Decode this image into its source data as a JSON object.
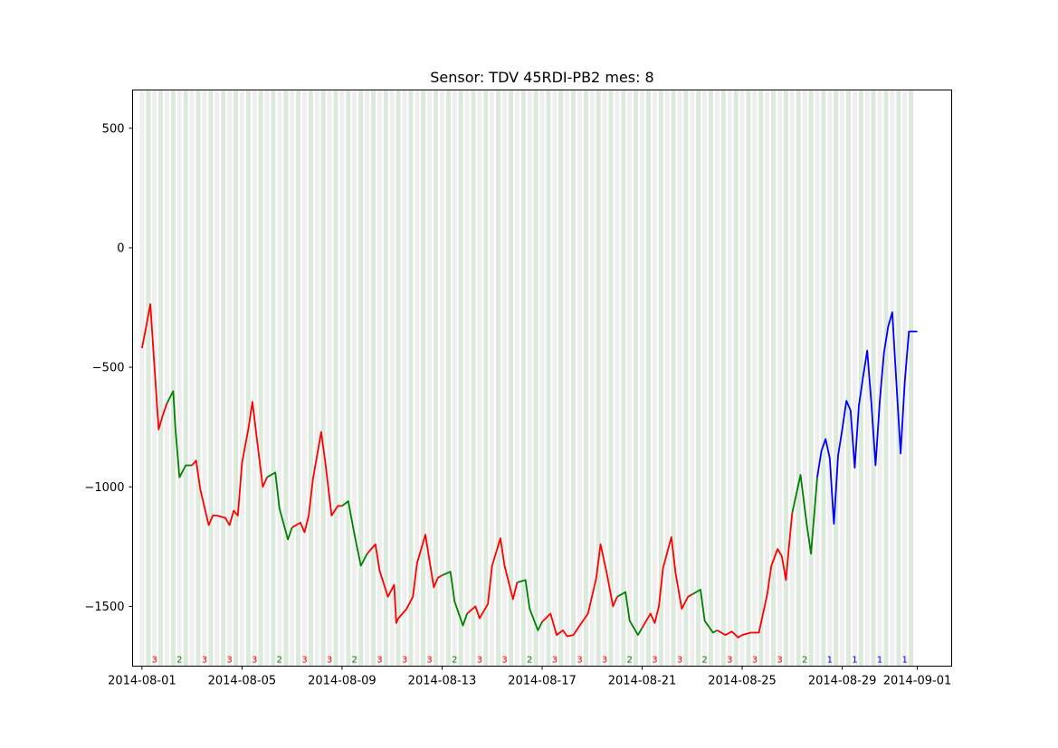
{
  "chart_data": {
    "type": "line",
    "title": "Sensor: TDV 45RDI-PB2 mes: 8",
    "xlabel": "",
    "ylabel": "",
    "x_range": [
      "2014-07-31T15:00",
      "2014-09-02T09:00"
    ],
    "ylim": [
      -1750,
      660
    ],
    "y_ticks": [
      500,
      0,
      -500,
      -1000,
      -1500
    ],
    "y_tick_labels": [
      "500",
      "0",
      "−500",
      "−1000",
      "−1500"
    ],
    "x_ticks": [
      "2014-08-01",
      "2014-08-05",
      "2014-08-09",
      "2014-08-13",
      "2014-08-17",
      "2014-08-21",
      "2014-08-25",
      "2014-08-29",
      "2014-09-01"
    ],
    "class_colors": {
      "1": "#0000ff",
      "2": "#008000",
      "3": "#ff0000"
    },
    "shade_colors": {
      "light": "#e8e8e8",
      "green": "#cfe3cf"
    },
    "day_classes": [
      {
        "date": "2014-08-01",
        "label": "3"
      },
      {
        "date": "2014-08-02",
        "label": "2"
      },
      {
        "date": "2014-08-03",
        "label": "3"
      },
      {
        "date": "2014-08-04",
        "label": "3"
      },
      {
        "date": "2014-08-05",
        "label": "3"
      },
      {
        "date": "2014-08-06",
        "label": "2"
      },
      {
        "date": "2014-08-07",
        "label": "3"
      },
      {
        "date": "2014-08-08",
        "label": "3"
      },
      {
        "date": "2014-08-09",
        "label": "2"
      },
      {
        "date": "2014-08-10",
        "label": "3"
      },
      {
        "date": "2014-08-11",
        "label": "3"
      },
      {
        "date": "2014-08-12",
        "label": "3"
      },
      {
        "date": "2014-08-13",
        "label": "2"
      },
      {
        "date": "2014-08-14",
        "label": "3"
      },
      {
        "date": "2014-08-15",
        "label": "3"
      },
      {
        "date": "2014-08-16",
        "label": "2"
      },
      {
        "date": "2014-08-17",
        "label": "3"
      },
      {
        "date": "2014-08-18",
        "label": "3"
      },
      {
        "date": "2014-08-19",
        "label": "3"
      },
      {
        "date": "2014-08-20",
        "label": "2"
      },
      {
        "date": "2014-08-21",
        "label": "3"
      },
      {
        "date": "2014-08-22",
        "label": "3"
      },
      {
        "date": "2014-08-23",
        "label": "2"
      },
      {
        "date": "2014-08-24",
        "label": "3"
      },
      {
        "date": "2014-08-25",
        "label": "3"
      },
      {
        "date": "2014-08-26",
        "label": "3"
      },
      {
        "date": "2014-08-27",
        "label": "2"
      },
      {
        "date": "2014-08-28",
        "label": "1"
      },
      {
        "date": "2014-08-29",
        "label": "1"
      },
      {
        "date": "2014-08-30",
        "label": "1"
      },
      {
        "date": "2014-08-31",
        "label": "1"
      }
    ],
    "series": [
      {
        "class": "3",
        "x": [
          "2014-08-01T00:00",
          "2014-08-01T04:00",
          "2014-08-01T08:00",
          "2014-08-01T12:00",
          "2014-08-01T16:00",
          "2014-08-01T20:00",
          "2014-08-02T00:00"
        ],
        "y": [
          -420,
          -330,
          -235,
          -500,
          -760,
          -700,
          -650
        ]
      },
      {
        "class": "2",
        "x": [
          "2014-08-02T00:00",
          "2014-08-02T06:00",
          "2014-08-02T08:00",
          "2014-08-02T12:00",
          "2014-08-02T18:00",
          "2014-08-03T00:00"
        ],
        "y": [
          -650,
          -600,
          -750,
          -960,
          -910,
          -910
        ]
      },
      {
        "class": "3",
        "x": [
          "2014-08-03T00:00",
          "2014-08-03T04:00",
          "2014-08-03T08:00",
          "2014-08-03T16:00",
          "2014-08-03T20:00",
          "2014-08-04T00:00",
          "2014-08-04T08:00",
          "2014-08-04T12:00",
          "2014-08-04T16:00",
          "2014-08-04T20:00",
          "2014-08-05T00:00",
          "2014-08-05T06:00",
          "2014-08-05T10:00",
          "2014-08-05T16:00",
          "2014-08-05T20:00",
          "2014-08-06T00:00"
        ],
        "y": [
          -910,
          -890,
          -1010,
          -1160,
          -1120,
          -1120,
          -1130,
          -1160,
          -1100,
          -1120,
          -900,
          -760,
          -645,
          -860,
          -1000,
          -960
        ]
      },
      {
        "class": "2",
        "x": [
          "2014-08-06T00:00",
          "2014-08-06T08:00",
          "2014-08-06T12:00",
          "2014-08-06T20:00",
          "2014-08-07T00:00"
        ],
        "y": [
          -960,
          -940,
          -1090,
          -1220,
          -1170
        ]
      },
      {
        "class": "3",
        "x": [
          "2014-08-07T00:00",
          "2014-08-07T08:00",
          "2014-08-07T12:00",
          "2014-08-07T16:00",
          "2014-08-07T20:00",
          "2014-08-08T04:00",
          "2014-08-08T08:00",
          "2014-08-08T14:00",
          "2014-08-08T20:00",
          "2014-08-09T00:00"
        ],
        "y": [
          -1170,
          -1150,
          -1190,
          -1120,
          -970,
          -770,
          -900,
          -1120,
          -1080,
          -1080
        ]
      },
      {
        "class": "2",
        "x": [
          "2014-08-09T00:00",
          "2014-08-09T06:00",
          "2014-08-09T12:00",
          "2014-08-09T18:00",
          "2014-08-10T00:00"
        ],
        "y": [
          -1080,
          -1060,
          -1200,
          -1330,
          -1280
        ]
      },
      {
        "class": "3",
        "x": [
          "2014-08-10T00:00",
          "2014-08-10T08:00",
          "2014-08-10T12:00",
          "2014-08-10T20:00",
          "2014-08-11T02:00",
          "2014-08-11T04:00",
          "2014-08-11T06:00",
          "2014-08-11T14:00",
          "2014-08-11T20:00",
          "2014-08-12T00:00",
          "2014-08-12T04:00",
          "2014-08-12T08:00",
          "2014-08-12T16:00",
          "2014-08-12T20:00",
          "2014-08-13T00:00"
        ],
        "y": [
          -1280,
          -1240,
          -1350,
          -1460,
          -1410,
          -1570,
          -1550,
          -1510,
          -1460,
          -1320,
          -1260,
          -1200,
          -1420,
          -1380,
          -1370
        ]
      },
      {
        "class": "2",
        "x": [
          "2014-08-13T00:00",
          "2014-08-13T08:00",
          "2014-08-13T12:00",
          "2014-08-13T20:00",
          "2014-08-14T00:00"
        ],
        "y": [
          -1370,
          -1355,
          -1480,
          -1580,
          -1530
        ]
      },
      {
        "class": "3",
        "x": [
          "2014-08-14T00:00",
          "2014-08-14T08:00",
          "2014-08-14T12:00",
          "2014-08-14T20:00",
          "2014-08-15T00:00",
          "2014-08-15T08:00",
          "2014-08-15T12:00",
          "2014-08-15T20:00",
          "2014-08-16T00:00"
        ],
        "y": [
          -1530,
          -1500,
          -1550,
          -1490,
          -1330,
          -1215,
          -1330,
          -1470,
          -1400
        ]
      },
      {
        "class": "2",
        "x": [
          "2014-08-16T00:00",
          "2014-08-16T08:00",
          "2014-08-16T12:00",
          "2014-08-16T20:00",
          "2014-08-17T00:00"
        ],
        "y": [
          -1400,
          -1390,
          -1510,
          -1600,
          -1565
        ]
      },
      {
        "class": "3",
        "x": [
          "2014-08-17T00:00",
          "2014-08-17T08:00",
          "2014-08-17T14:00",
          "2014-08-17T20:00",
          "2014-08-18T00:00",
          "2014-08-18T06:00",
          "2014-08-18T12:00",
          "2014-08-18T20:00",
          "2014-08-19T04:00",
          "2014-08-19T08:00",
          "2014-08-19T14:00",
          "2014-08-19T20:00",
          "2014-08-20T00:00"
        ],
        "y": [
          -1565,
          -1530,
          -1620,
          -1600,
          -1625,
          -1620,
          -1580,
          -1530,
          -1380,
          -1240,
          -1360,
          -1500,
          -1460
        ]
      },
      {
        "class": "2",
        "x": [
          "2014-08-20T00:00",
          "2014-08-20T08:00",
          "2014-08-20T12:00",
          "2014-08-20T20:00",
          "2014-08-21T00:00"
        ],
        "y": [
          -1460,
          -1440,
          -1560,
          -1620,
          -1590
        ]
      },
      {
        "class": "3",
        "x": [
          "2014-08-21T00:00",
          "2014-08-21T08:00",
          "2014-08-21T12:00",
          "2014-08-21T16:00",
          "2014-08-21T20:00",
          "2014-08-22T04:00",
          "2014-08-22T08:00",
          "2014-08-22T14:00",
          "2014-08-22T20:00",
          "2014-08-23T00:00"
        ],
        "y": [
          -1590,
          -1530,
          -1570,
          -1500,
          -1340,
          -1210,
          -1360,
          -1510,
          -1460,
          -1450
        ]
      },
      {
        "class": "2",
        "x": [
          "2014-08-23T00:00",
          "2014-08-23T08:00",
          "2014-08-23T12:00",
          "2014-08-23T20:00",
          "2014-08-24T00:00"
        ],
        "y": [
          -1450,
          -1430,
          -1560,
          -1610,
          -1600
        ]
      },
      {
        "class": "3",
        "x": [
          "2014-08-24T00:00",
          "2014-08-24T08:00",
          "2014-08-24T14:00",
          "2014-08-24T20:00",
          "2014-08-25T00:00",
          "2014-08-25T08:00",
          "2014-08-25T16:00",
          "2014-08-26T00:00",
          "2014-08-26T04:00",
          "2014-08-26T10:00",
          "2014-08-26T14:00",
          "2014-08-26T18:00",
          "2014-08-26T22:00",
          "2014-08-27T00:00"
        ],
        "y": [
          -1600,
          -1620,
          -1605,
          -1630,
          -1620,
          -1610,
          -1610,
          -1450,
          -1330,
          -1260,
          -1290,
          -1390,
          -1200,
          -1110
        ]
      },
      {
        "class": "2",
        "x": [
          "2014-08-27T00:00",
          "2014-08-27T08:00",
          "2014-08-27T14:00",
          "2014-08-27T18:00",
          "2014-08-28T00:00"
        ],
        "y": [
          -1110,
          -950,
          -1160,
          -1280,
          -960
        ]
      },
      {
        "class": "1",
        "x": [
          "2014-08-28T00:00",
          "2014-08-28T04:00",
          "2014-08-28T08:00",
          "2014-08-28T12:00",
          "2014-08-28T16:00",
          "2014-08-28T20:00",
          "2014-08-29T00:00",
          "2014-08-29T04:00",
          "2014-08-29T08:00",
          "2014-08-29T12:00",
          "2014-08-29T16:00",
          "2014-08-29T20:00",
          "2014-08-30T00:00",
          "2014-08-30T04:00",
          "2014-08-30T08:00",
          "2014-08-30T12:00",
          "2014-08-30T16:00",
          "2014-08-30T20:00",
          "2014-08-31T00:00",
          "2014-08-31T04:00",
          "2014-08-31T08:00",
          "2014-08-31T12:00",
          "2014-08-31T16:00",
          "2014-08-31T20:00",
          "2014-09-01T00:00"
        ],
        "y": [
          -960,
          -850,
          -800,
          -880,
          -1155,
          -870,
          -760,
          -640,
          -680,
          -920,
          -660,
          -540,
          -430,
          -650,
          -910,
          -640,
          -440,
          -330,
          -270,
          -570,
          -860,
          -560,
          -350,
          -350,
          -350
        ]
      }
    ]
  }
}
